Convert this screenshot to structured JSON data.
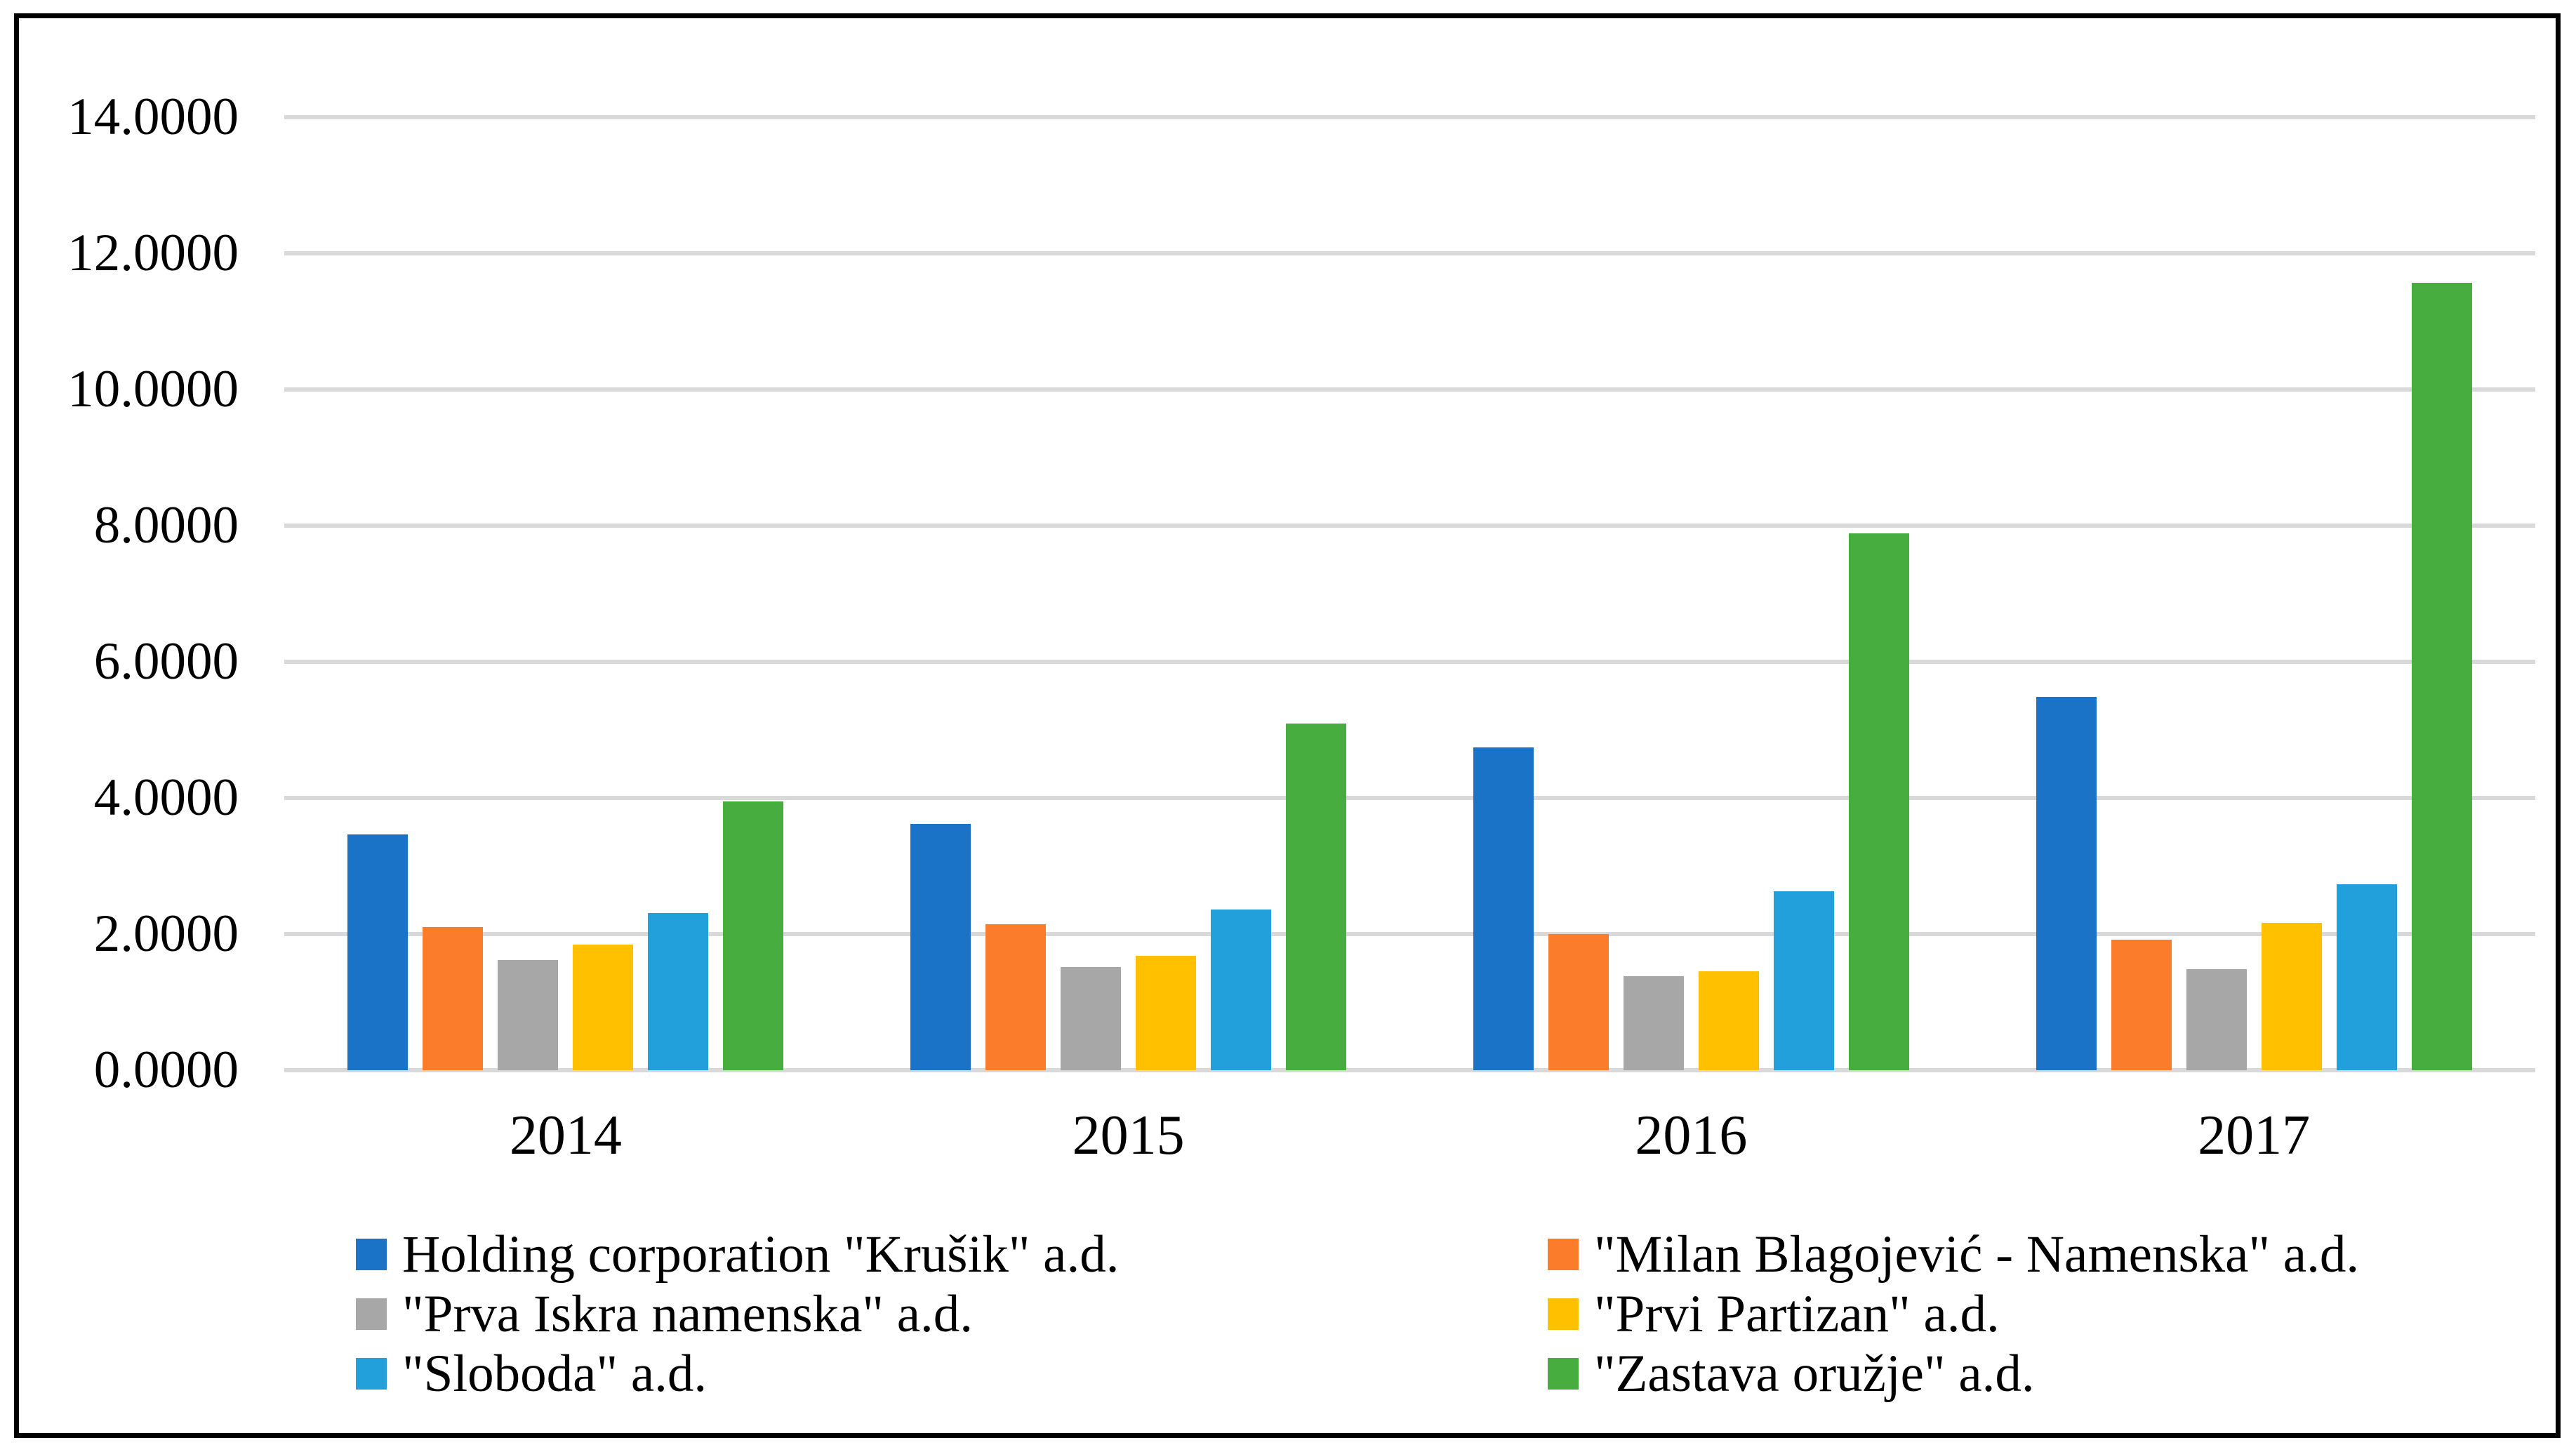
{
  "figure": {
    "background_color": "#FFFFFF",
    "border_color": "#000000",
    "gridline_color": "#D9D9D9"
  },
  "chart_data": {
    "type": "bar",
    "title": "",
    "xlabel": "",
    "ylabel": "",
    "categories": [
      "2014",
      "2015",
      "2016",
      "2017"
    ],
    "series": [
      {
        "name": "Holding corporation \"Krušik\" a.d.",
        "color": "#1B73C8",
        "values": [
          3.46,
          3.62,
          4.74,
          5.48
        ]
      },
      {
        "name": "\"Milan Blagojević - Namenska\" a.d.",
        "color": "#FB7D2C",
        "values": [
          2.1,
          2.14,
          2.0,
          1.92
        ]
      },
      {
        "name": "\"Prva Iskra namenska\" a.d.",
        "color": "#A7A7A7",
        "values": [
          1.62,
          1.52,
          1.38,
          1.48
        ]
      },
      {
        "name": "\"Prvi Partizan\" a.d.",
        "color": "#FFC000",
        "values": [
          1.85,
          1.68,
          1.45,
          2.17
        ]
      },
      {
        "name": "\"Sloboda\" a.d.",
        "color": "#22A0DB",
        "values": [
          2.31,
          2.36,
          2.63,
          2.73
        ]
      },
      {
        "name": "\"Zastava oružje\" a.d.",
        "color": "#47AD3E",
        "values": [
          3.95,
          5.09,
          7.89,
          11.57
        ]
      }
    ],
    "ylim": [
      0,
      14
    ],
    "ytick_step": 2,
    "ytick_labels": [
      "0.0000",
      "2.0000",
      "4.0000",
      "6.0000",
      "8.0000",
      "10.0000",
      "12.0000",
      "14.0000"
    ],
    "grid": true,
    "legend_position": "bottom",
    "legend_columns": 2
  }
}
